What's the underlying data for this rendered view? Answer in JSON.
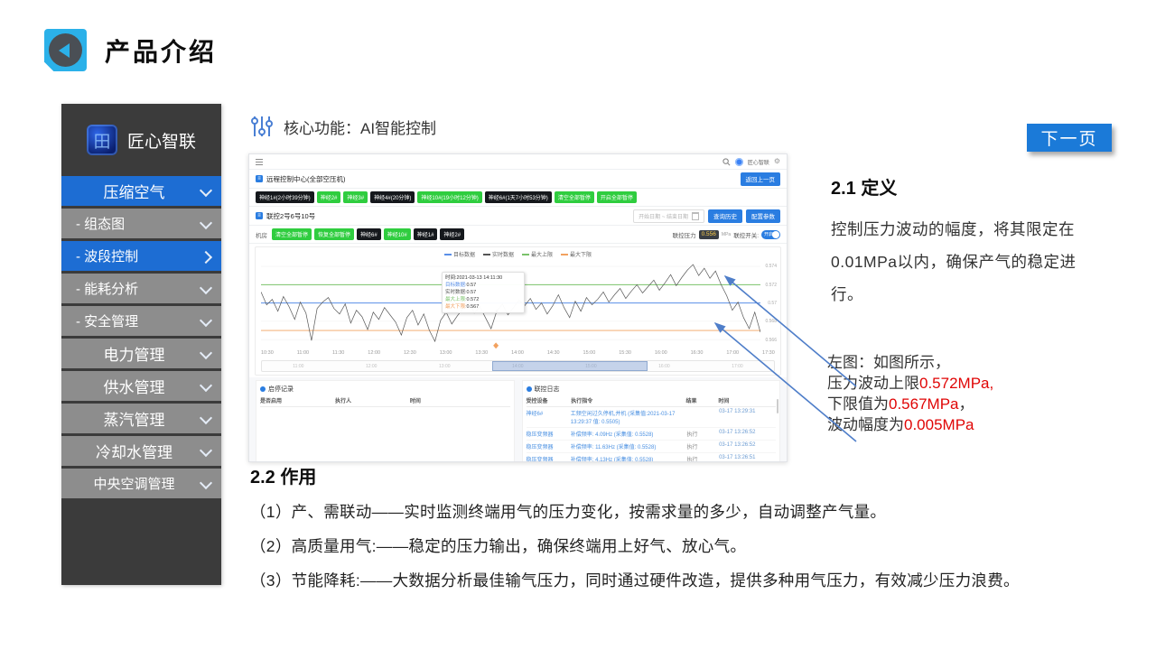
{
  "page": {
    "title": "产品介绍",
    "next_button": "下一页"
  },
  "sidebar": {
    "brand": "匠心智联",
    "items": [
      {
        "label": "压缩空气",
        "type": "main",
        "active": true,
        "chevron": "down"
      },
      {
        "label": "- 组态图",
        "type": "sub",
        "active": false,
        "chevron": "down"
      },
      {
        "label": "- 波段控制",
        "type": "sub",
        "active": true,
        "chevron": "right"
      },
      {
        "label": "- 能耗分析",
        "type": "sub",
        "active": false,
        "chevron": "down"
      },
      {
        "label": "- 安全管理",
        "type": "sub",
        "active": false,
        "chevron": "down"
      },
      {
        "label": "电力管理",
        "type": "main",
        "active": false,
        "chevron": "down"
      },
      {
        "label": "供水管理",
        "type": "main",
        "active": false,
        "chevron": "down"
      },
      {
        "label": "蒸汽管理",
        "type": "main",
        "active": false,
        "chevron": "down"
      },
      {
        "label": "冷却水管理",
        "type": "main",
        "active": false,
        "chevron": "down"
      },
      {
        "label": "中央空调管理",
        "type": "main",
        "active": false,
        "chevron": "down"
      }
    ]
  },
  "section_header": {
    "label": "核心功能：AI智能控制"
  },
  "dashboard": {
    "navbar": {
      "user": "匠心智联"
    },
    "section1": {
      "title": "远程控制中心(全部空压机)",
      "back_button": "返回上一页",
      "pills": [
        {
          "label": "神经1#(2小时39分钟)",
          "color": "black"
        },
        {
          "label": "神经2#",
          "color": "green"
        },
        {
          "label": "神经3#",
          "color": "green"
        },
        {
          "label": "神经4#(20分钟)",
          "color": "black"
        },
        {
          "label": "神经10#(19小时12分钟)",
          "color": "green"
        },
        {
          "label": "神经6#(1天7小时53分钟)",
          "color": "black"
        },
        {
          "label": "清空全部暂停",
          "color": "green"
        },
        {
          "label": "开启全部暂停",
          "color": "green"
        }
      ]
    },
    "section2": {
      "title": "联控2号6号10号",
      "date_placeholder": "开始日期 ~ 结束日期",
      "buttons": [
        "查询历史",
        "配置参数"
      ],
      "room_label": "机房",
      "pills": [
        {
          "label": "清空全部暂停",
          "color": "green"
        },
        {
          "label": "恢复全部暂停",
          "color": "green"
        },
        {
          "label": "神经6#",
          "color": "black"
        },
        {
          "label": "神经10#",
          "color": "green"
        },
        {
          "label": "神经1#",
          "color": "black"
        },
        {
          "label": "神经2#",
          "color": "black"
        }
      ],
      "pressure_label": "联控压力",
      "pressure_value": "0.556",
      "pressure_unit": "MPa",
      "switch_label": "联控开关:",
      "switch_state": "开启"
    },
    "log_left": {
      "title": "启停记录",
      "columns": [
        "是否启用",
        "执行人",
        "时间"
      ],
      "rows": []
    },
    "log_right": {
      "title": "联控日志",
      "columns": [
        "受控设备",
        "执行指令",
        "结果",
        "时间"
      ],
      "rows": [
        {
          "device": "神经6#",
          "command": "工频空闲过久停机,并机 (采集值:2021-03-17 13:29:37 值: 0.5505)",
          "result": "",
          "time": "03-17 13:29:31"
        },
        {
          "device": "稳压变频器",
          "command": "补偿频率: 4.09Hz (采集值: 0.5528)",
          "result": "执行",
          "time": "03-17 13:26:52"
        },
        {
          "device": "稳压变频器",
          "command": "补偿频率: 11.63Hz (采集值: 0.5528)",
          "result": "执行",
          "time": "03-17 13:26:52"
        },
        {
          "device": "稳压变频器",
          "command": "补偿频率: 4.13Hz (采集值: 0.5528)",
          "result": "执行",
          "time": "03-17 13:26:51"
        }
      ]
    }
  },
  "chart_data": {
    "type": "line",
    "title": "",
    "x_ticks": [
      "10:30",
      "11:00",
      "11:30",
      "12:00",
      "12:30",
      "13:00",
      "13:30",
      "14:00",
      "14:30",
      "15:00",
      "15:30",
      "16:00",
      "16:30",
      "17:00",
      "17:30"
    ],
    "y_ticks": [
      0.574,
      0.572,
      0.57,
      0.568,
      0.566
    ],
    "ylim": [
      0.565,
      0.5748
    ],
    "legend": [
      {
        "name": "目标数据",
        "color": "#5a8fe8"
      },
      {
        "name": "实时数据",
        "color": "#555555"
      },
      {
        "name": "最大上限",
        "color": "#7ac26a"
      },
      {
        "name": "最大下限",
        "color": "#f2a15f"
      }
    ],
    "series": [
      {
        "name": "目标数据",
        "type": "constant",
        "value": 0.57
      },
      {
        "name": "最大上限",
        "type": "constant",
        "value": 0.572
      },
      {
        "name": "最大下限",
        "type": "constant",
        "value": 0.567
      },
      {
        "name": "实时数据",
        "type": "sampled",
        "values": [
          0.5712,
          0.5698,
          0.5704,
          0.5691,
          0.5707,
          0.5696,
          0.5682,
          0.5701,
          0.5689,
          0.5659,
          0.5694,
          0.5701,
          0.5706,
          0.5694,
          0.5688,
          0.5699,
          0.5678,
          0.5692,
          0.5685,
          0.5671,
          0.569,
          0.5682,
          0.5695,
          0.5687,
          0.5679,
          0.5665,
          0.5684,
          0.5692,
          0.5676,
          0.5688,
          0.567,
          0.5658,
          0.5681,
          0.569,
          0.5677,
          0.5686,
          0.5694,
          0.5701,
          0.5689,
          0.5696,
          0.5684,
          0.5672,
          0.5691,
          0.5699,
          0.5687,
          0.5695,
          0.5703,
          0.5697,
          0.5705,
          0.5693,
          0.57,
          0.5688,
          0.5697,
          0.5709,
          0.5695,
          0.5684,
          0.5702,
          0.5691,
          0.5706,
          0.5698,
          0.5704,
          0.5712,
          0.5701,
          0.5709,
          0.5716,
          0.5705,
          0.5713,
          0.572,
          0.5711,
          0.5718,
          0.5725,
          0.5714,
          0.5722,
          0.5731,
          0.5719,
          0.5728,
          0.5736,
          0.5742,
          0.573,
          0.5738,
          0.5727,
          0.5735,
          0.572,
          0.5708,
          0.5692,
          0.5701,
          0.5684,
          0.5672,
          0.569,
          0.5668
        ]
      }
    ],
    "tooltip": {
      "time": "时间:2021-03-13 14:11:30",
      "rows": [
        {
          "label": "目标数据",
          "value": "0.57",
          "color": "#5a8fe8"
        },
        {
          "label": "实时数据",
          "value": "0.57",
          "color": "#555555"
        },
        {
          "label": "最大上限",
          "value": "0.572",
          "color": "#7ac26a"
        },
        {
          "label": "最大下限",
          "value": "0.567",
          "color": "#f2a15f"
        }
      ]
    },
    "zoom_labels": [
      "11:00",
      "12:00",
      "13:00",
      "14:00",
      "15:00",
      "16:00",
      "17:00"
    ],
    "legend_position": "top",
    "grid": true
  },
  "definition": {
    "heading": "2.1 定义",
    "body_lines": [
      "控制压力波动的幅度，将其限定在",
      "0.01MPa以内，确保产气的稳定进",
      "行。"
    ]
  },
  "annotation": {
    "lines": [
      [
        {
          "text": "左图：如图所示，"
        }
      ],
      [
        {
          "text": "压力波动上限"
        },
        {
          "text": "0.572MPa,",
          "red": true
        }
      ],
      [
        {
          "text": "下限值为"
        },
        {
          "text": "0.567MPa",
          "red": true
        },
        {
          "text": "，"
        }
      ],
      [
        {
          "text": "波动幅度为"
        },
        {
          "text": "0.005MPa",
          "red": true
        }
      ]
    ]
  },
  "usage": {
    "heading": "2.2 作用",
    "bullets": [
      "（1）产、需联动——实时监测终端用气的压力变化，按需求量的多少，自动调整产气量。",
      "（2）高质量用气:——稳定的压力输出，确保终端用上好气、放心气。",
      "（3）节能降耗:——大数据分析最佳输气压力，同时通过硬件改造，提供多种用气压力，有效减少压力浪费。"
    ]
  },
  "colors": {
    "accent_blue": "#1b7ad8",
    "sidebar_blue": "#1d6dd3",
    "sidebar_gray": "#8d8d8d",
    "highlight_red": "#e00505",
    "pill_green": "#2fcd3f",
    "pill_black": "#15181c"
  }
}
